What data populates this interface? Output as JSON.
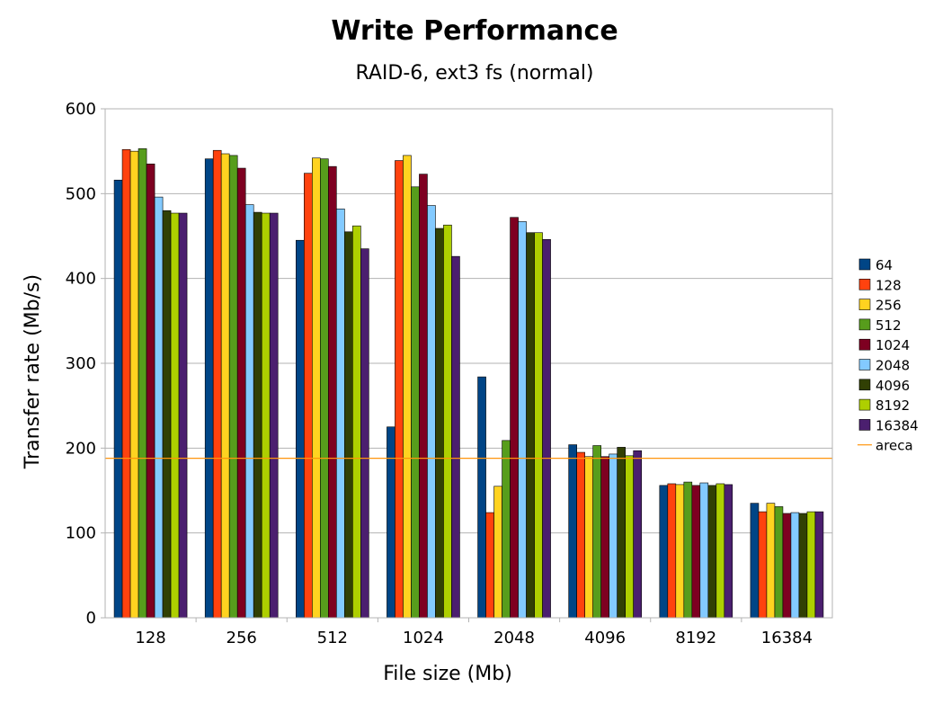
{
  "chart_data": {
    "type": "bar",
    "title": "Write Performance",
    "subtitle": "RAID-6, ext3 fs (normal)",
    "xlabel": "File size (Mb)",
    "ylabel": "Transfer rate (Mb/s)",
    "ylim": [
      0,
      600
    ],
    "yticks": [
      "0",
      "100",
      "200",
      "300",
      "400",
      "500",
      "600"
    ],
    "grid": true,
    "legend_position": "right",
    "categories": [
      "128",
      "256",
      "512",
      "1024",
      "2048",
      "4096",
      "8192",
      "16384"
    ],
    "series": [
      {
        "name": "64",
        "color": "#004586",
        "values": [
          516,
          541,
          445,
          225,
          284,
          204,
          156,
          135
        ]
      },
      {
        "name": "128",
        "color": "#ff420e",
        "values": [
          552,
          551,
          524,
          539,
          124,
          195,
          158,
          125
        ]
      },
      {
        "name": "256",
        "color": "#ffd320",
        "values": [
          550,
          547,
          542,
          545,
          155,
          190,
          157,
          135
        ]
      },
      {
        "name": "512",
        "color": "#579d1c",
        "values": [
          553,
          545,
          541,
          508,
          209,
          203,
          160,
          131
        ]
      },
      {
        "name": "1024",
        "color": "#7e0021",
        "values": [
          535,
          530,
          532,
          523,
          472,
          190,
          156,
          123
        ]
      },
      {
        "name": "2048",
        "color": "#83caff",
        "values": [
          496,
          487,
          482,
          486,
          467,
          193,
          159,
          124
        ]
      },
      {
        "name": "4096",
        "color": "#314004",
        "values": [
          480,
          478,
          455,
          459,
          454,
          201,
          156,
          123
        ]
      },
      {
        "name": "8192",
        "color": "#aecf00",
        "values": [
          477,
          477,
          462,
          463,
          454,
          191,
          158,
          125
        ]
      },
      {
        "name": "16384",
        "color": "#4b1f6f",
        "values": [
          477,
          477,
          435,
          426,
          446,
          197,
          157,
          125
        ]
      }
    ],
    "reference_lines": [
      {
        "name": "areca",
        "color": "#ff950e",
        "value": 188
      }
    ]
  }
}
